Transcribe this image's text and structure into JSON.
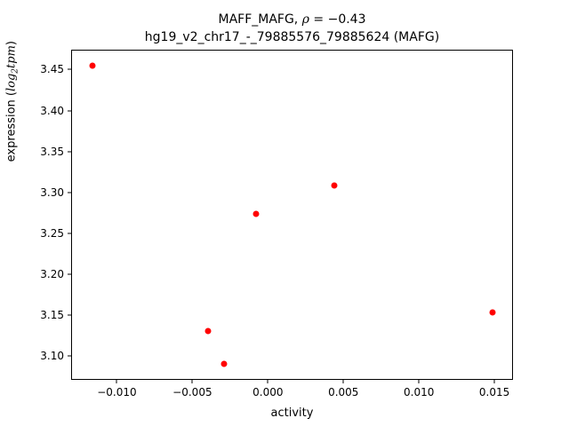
{
  "chart_data": {
    "type": "scatter",
    "title_line1": "MAFF_MAFG, ρ = −0.43",
    "title_line1_prefix": "MAFF_MAFG, ",
    "title_line1_rho": "ρ",
    "title_line1_suffix": " = −0.43",
    "title_line2": "hg19_v2_chr17_-_79885576_79885624 (MAFG)",
    "xlabel": "activity",
    "ylabel_prefix": "expression (",
    "ylabel_log": "log",
    "ylabel_sub": "2",
    "ylabel_tpm": "tpm",
    "ylabel_suffix": ")",
    "marker_color": "#ff0000",
    "series": [
      {
        "name": "points",
        "points": [
          {
            "x": -0.0117,
            "y": 3.456
          },
          {
            "x": -0.004,
            "y": 3.13
          },
          {
            "x": -0.0029,
            "y": 3.089
          },
          {
            "x": -0.0008,
            "y": 3.274
          },
          {
            "x": 0.0044,
            "y": 3.308
          },
          {
            "x": 0.0149,
            "y": 3.152
          }
        ]
      }
    ],
    "xlim": [
      -0.01303,
      0.01623
    ],
    "ylim": [
      3.0706,
      3.4744
    ],
    "x_ticks": [
      -0.01,
      -0.005,
      0.0,
      0.005,
      0.01,
      0.015
    ],
    "x_tick_labels": [
      "−0.010",
      "−0.005",
      "0.000",
      "0.005",
      "0.010",
      "0.015"
    ],
    "y_ticks": [
      3.1,
      3.15,
      3.2,
      3.25,
      3.3,
      3.35,
      3.4,
      3.45
    ],
    "y_tick_labels": [
      "3.10",
      "3.15",
      "3.20",
      "3.25",
      "3.30",
      "3.35",
      "3.40",
      "3.45"
    ],
    "grid": false,
    "legend": "none"
  }
}
